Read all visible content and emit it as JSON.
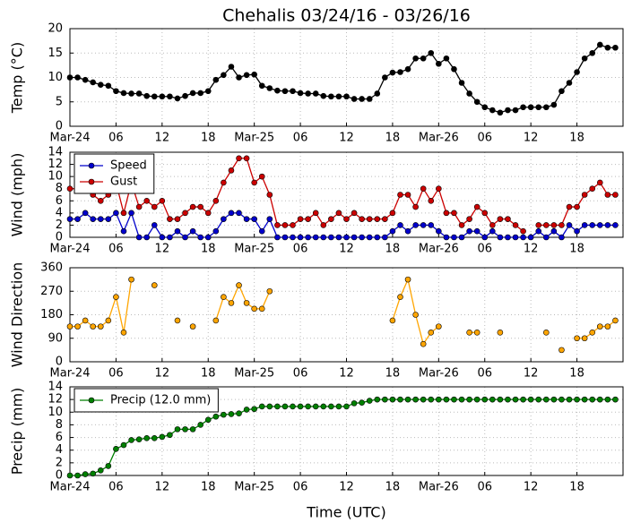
{
  "chart_data": [
    {
      "type": "line",
      "title": "Chehalis 03/24/16 - 03/26/16",
      "ylabel": "Temp (°C)",
      "x": [
        0,
        1,
        2,
        3,
        4,
        5,
        6,
        7,
        8,
        9,
        10,
        11,
        12,
        13,
        14,
        15,
        16,
        17,
        18,
        19,
        20,
        21,
        22,
        23,
        24,
        25,
        26,
        27,
        28,
        29,
        30,
        31,
        32,
        33,
        34,
        35,
        36,
        37,
        38,
        39,
        40,
        41,
        42,
        43,
        44,
        45,
        46,
        47,
        48,
        49,
        50,
        51,
        52,
        53,
        54,
        55,
        56,
        57,
        58,
        59,
        60,
        61,
        62,
        63,
        64,
        65,
        66,
        67,
        68,
        69,
        70,
        71
      ],
      "xlim": [
        0,
        72
      ],
      "xticks": [
        {
          "value": 0,
          "label": "Mar-24"
        },
        {
          "value": 6,
          "label": "06"
        },
        12,
        18,
        {
          "value": 24,
          "label": "Mar-25"
        },
        {
          "value": 30,
          "label": "06"
        },
        {
          "value": 36,
          "label": "12"
        },
        {
          "value": 42,
          "label": "18"
        },
        {
          "value": 48,
          "label": "Mar-26"
        },
        {
          "value": 54,
          "label": "06"
        },
        {
          "value": 60,
          "label": "12"
        },
        {
          "value": 66,
          "label": "18"
        }
      ],
      "ylim": [
        0,
        20
      ],
      "yticks": [
        0,
        5,
        10,
        15,
        20
      ],
      "grid": true,
      "series": [
        {
          "color": "#000000",
          "values": [
            10,
            10,
            9.5,
            9,
            8.5,
            8.3,
            7.2,
            6.8,
            6.7,
            6.7,
            6.2,
            6.1,
            6.1,
            6.1,
            5.7,
            6.2,
            6.8,
            6.8,
            7.2,
            9.5,
            10.5,
            12.2,
            10,
            10.5,
            10.6,
            8.3,
            7.8,
            7.3,
            7.2,
            7.2,
            6.8,
            6.7,
            6.7,
            6.2,
            6.1,
            6.1,
            6.1,
            5.6,
            5.6,
            5.6,
            6.7,
            10,
            11,
            11.1,
            11.7,
            13.9,
            13.9,
            15,
            12.8,
            13.9,
            11.7,
            8.9,
            6.7,
            5,
            3.9,
            3.3,
            2.8,
            3.3,
            3.3,
            3.9,
            3.9,
            3.9,
            3.9,
            4.4,
            7.2,
            8.9,
            11.1,
            13.9,
            15,
            16.7,
            16.1,
            16.1
          ]
        }
      ]
    },
    {
      "type": "line",
      "ylabel": "Wind (mph)",
      "x": [
        0,
        1,
        2,
        3,
        4,
        5,
        6,
        7,
        8,
        9,
        10,
        11,
        12,
        13,
        14,
        15,
        16,
        17,
        18,
        19,
        20,
        21,
        22,
        23,
        24,
        25,
        26,
        27,
        28,
        29,
        30,
        31,
        32,
        33,
        34,
        35,
        36,
        37,
        38,
        39,
        40,
        41,
        42,
        43,
        44,
        45,
        46,
        47,
        48,
        49,
        50,
        51,
        52,
        53,
        54,
        55,
        56,
        57,
        58,
        59,
        60,
        61,
        62,
        63,
        64,
        65,
        66,
        67,
        68,
        69,
        70,
        71
      ],
      "xlim": [
        0,
        72
      ],
      "xticks": [
        {
          "value": 0,
          "label": "Mar-24"
        },
        {
          "value": 6,
          "label": "06"
        },
        12,
        18,
        {
          "value": 24,
          "label": "Mar-25"
        },
        {
          "value": 30,
          "label": "06"
        },
        {
          "value": 36,
          "label": "12"
        },
        {
          "value": 42,
          "label": "18"
        },
        {
          "value": 48,
          "label": "Mar-26"
        },
        {
          "value": 54,
          "label": "06"
        },
        {
          "value": 60,
          "label": "12"
        },
        {
          "value": 66,
          "label": "18"
        }
      ],
      "ylim": [
        0,
        14
      ],
      "yticks": [
        0,
        2,
        4,
        6,
        8,
        10,
        12,
        14
      ],
      "grid": true,
      "legend": "upper left",
      "series": [
        {
          "name": "Speed",
          "color": "#0000cc",
          "values": [
            3,
            3,
            4,
            3,
            3,
            3,
            4,
            1,
            4,
            0,
            0,
            2,
            0,
            0,
            1,
            0,
            1,
            0,
            0,
            1,
            3,
            4,
            4,
            3,
            3,
            1,
            3,
            0,
            0,
            0,
            0,
            0,
            0,
            0,
            0,
            0,
            0,
            0,
            0,
            0,
            0,
            0,
            1,
            2,
            1,
            2,
            2,
            2,
            1,
            0,
            0,
            0,
            1,
            1,
            0,
            1,
            0,
            0,
            0,
            0,
            0,
            1,
            0,
            1,
            0,
            2,
            1,
            2,
            2,
            2,
            2,
            2
          ]
        },
        {
          "name": "Gust",
          "color": "#cc0000",
          "values": [
            8,
            8,
            8,
            7,
            6,
            7,
            9,
            4,
            9,
            5,
            6,
            5,
            6,
            3,
            3,
            4,
            5,
            5,
            4,
            6,
            9,
            11,
            13,
            13,
            9,
            10,
            7,
            2,
            2,
            2,
            3,
            3,
            4,
            2,
            3,
            4,
            3,
            4,
            3,
            3,
            3,
            3,
            4,
            7,
            7,
            5,
            8,
            6,
            8,
            4,
            4,
            2,
            3,
            5,
            4,
            2,
            3,
            3,
            2,
            1,
            null,
            2,
            2,
            2,
            2,
            5,
            5,
            7,
            8,
            9,
            7,
            7
          ]
        }
      ]
    },
    {
      "type": "line",
      "ylabel": "Wind Direction",
      "x": [
        0,
        1,
        2,
        3,
        4,
        5,
        6,
        7,
        8,
        9,
        10,
        11,
        12,
        13,
        14,
        15,
        16,
        17,
        18,
        19,
        20,
        21,
        22,
        23,
        24,
        25,
        26,
        27,
        28,
        29,
        30,
        31,
        32,
        33,
        34,
        35,
        36,
        37,
        38,
        39,
        40,
        41,
        42,
        43,
        44,
        45,
        46,
        47,
        48,
        49,
        50,
        51,
        52,
        53,
        54,
        55,
        56,
        57,
        58,
        59,
        60,
        61,
        62,
        63,
        64,
        65,
        66,
        67,
        68,
        69,
        70,
        71
      ],
      "xlim": [
        0,
        72
      ],
      "xticks": [
        {
          "value": 0,
          "label": "Mar-24"
        },
        {
          "value": 6,
          "label": "06"
        },
        12,
        18,
        {
          "value": 24,
          "label": "Mar-25"
        },
        {
          "value": 30,
          "label": "06"
        },
        {
          "value": 36,
          "label": "12"
        },
        {
          "value": 42,
          "label": "18"
        },
        {
          "value": 48,
          "label": "Mar-26"
        },
        {
          "value": 54,
          "label": "06"
        },
        {
          "value": 60,
          "label": "12"
        },
        {
          "value": 66,
          "label": "18"
        }
      ],
      "ylim": [
        0,
        360
      ],
      "yticks": [
        0,
        90,
        180,
        270,
        360
      ],
      "grid": true,
      "series": [
        {
          "color": "#ffa500",
          "values": [
            135,
            135,
            158,
            135,
            135,
            158,
            248,
            112,
            315,
            null,
            null,
            293,
            null,
            null,
            158,
            null,
            135,
            null,
            null,
            158,
            248,
            225,
            293,
            225,
            203,
            203,
            270,
            null,
            null,
            null,
            null,
            null,
            null,
            null,
            null,
            null,
            null,
            null,
            null,
            null,
            null,
            null,
            158,
            248,
            315,
            180,
            68,
            112,
            135,
            null,
            null,
            null,
            112,
            112,
            null,
            null,
            112,
            null,
            null,
            null,
            null,
            null,
            112,
            null,
            45,
            null,
            90,
            90,
            112,
            135,
            135,
            158
          ]
        }
      ]
    },
    {
      "type": "line",
      "ylabel": "Precip (mm)",
      "xlabel": "Time (UTC)",
      "x": [
        0,
        1,
        2,
        3,
        4,
        5,
        6,
        7,
        8,
        9,
        10,
        11,
        12,
        13,
        14,
        15,
        16,
        17,
        18,
        19,
        20,
        21,
        22,
        23,
        24,
        25,
        26,
        27,
        28,
        29,
        30,
        31,
        32,
        33,
        34,
        35,
        36,
        37,
        38,
        39,
        40,
        41,
        42,
        43,
        44,
        45,
        46,
        47,
        48,
        49,
        50,
        51,
        52,
        53,
        54,
        55,
        56,
        57,
        58,
        59,
        60,
        61,
        62,
        63,
        64,
        65,
        66,
        67,
        68,
        69,
        70,
        71
      ],
      "xlim": [
        0,
        72
      ],
      "xticks": [
        {
          "value": 0,
          "label": "Mar-24"
        },
        {
          "value": 6,
          "label": "06"
        },
        12,
        18,
        {
          "value": 24,
          "label": "Mar-25"
        },
        {
          "value": 30,
          "label": "06"
        },
        {
          "value": 36,
          "label": "12"
        },
        {
          "value": 42,
          "label": "18"
        },
        {
          "value": 48,
          "label": "Mar-26"
        },
        {
          "value": 54,
          "label": "06"
        },
        {
          "value": 60,
          "label": "12"
        },
        {
          "value": 66,
          "label": "18"
        }
      ],
      "ylim": [
        0,
        14
      ],
      "yticks": [
        0,
        2,
        4,
        6,
        8,
        10,
        12,
        14
      ],
      "grid": true,
      "legend": "upper left",
      "series": [
        {
          "name": "Precip (12.0 mm)",
          "color": "#008000",
          "values": [
            0,
            0,
            0.2,
            0.3,
            0.8,
            1.5,
            4.2,
            4.8,
            5.6,
            5.7,
            5.9,
            5.9,
            6.1,
            6.4,
            7.3,
            7.3,
            7.3,
            8,
            8.8,
            9.3,
            9.6,
            9.7,
            9.8,
            10.4,
            10.5,
            10.9,
            10.9,
            10.9,
            10.9,
            10.9,
            10.9,
            10.9,
            10.9,
            10.9,
            10.9,
            10.9,
            10.9,
            11.4,
            11.5,
            11.8,
            12,
            12,
            12,
            12,
            12,
            12,
            12,
            12,
            12,
            12,
            12,
            12,
            12,
            12,
            12,
            12,
            12,
            12,
            12,
            12,
            12,
            12,
            12,
            12,
            12,
            12,
            12,
            12,
            12,
            12,
            12,
            12
          ]
        }
      ]
    }
  ]
}
